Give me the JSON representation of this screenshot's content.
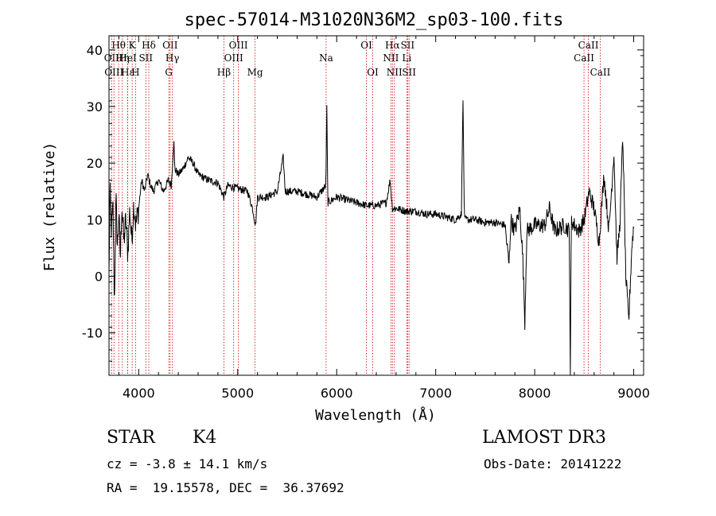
{
  "chart_data": {
    "type": "line",
    "title": "spec-57014-M31020N36M2_sp03-100.fits",
    "xlabel": "Wavelength (Å)",
    "ylabel": "Flux (relative)",
    "xlim": [
      3700,
      9100
    ],
    "ylim": [
      -17.5,
      42.5
    ],
    "xticks": [
      4000,
      5000,
      6000,
      7000,
      8000,
      9000
    ],
    "yticks": [
      -10,
      0,
      10,
      20,
      30,
      40
    ],
    "line_color": "#000000",
    "marker_color": "#cc0000",
    "spectrum": {
      "name": "flux",
      "anchors": [
        [
          3700,
          0
        ],
        [
          3710,
          15
        ],
        [
          3725,
          8
        ],
        [
          3740,
          12
        ],
        [
          3755,
          -5
        ],
        [
          3770,
          14
        ],
        [
          3785,
          5
        ],
        [
          3800,
          11
        ],
        [
          3815,
          3
        ],
        [
          3830,
          13
        ],
        [
          3850,
          6
        ],
        [
          3870,
          10
        ],
        [
          3890,
          4
        ],
        [
          3910,
          12
        ],
        [
          3930,
          6
        ],
        [
          3950,
          13
        ],
        [
          3970,
          9
        ],
        [
          4000,
          12
        ],
        [
          4030,
          17
        ],
        [
          4060,
          15
        ],
        [
          4090,
          18
        ],
        [
          4120,
          16
        ],
        [
          4150,
          15
        ],
        [
          4200,
          17
        ],
        [
          4250,
          15
        ],
        [
          4300,
          17
        ],
        [
          4330,
          16
        ],
        [
          4355,
          24
        ],
        [
          4365,
          19
        ],
        [
          4400,
          18
        ],
        [
          4450,
          19
        ],
        [
          4500,
          21
        ],
        [
          4550,
          20
        ],
        [
          4600,
          18
        ],
        [
          4700,
          17
        ],
        [
          4800,
          16.5
        ],
        [
          4860,
          14
        ],
        [
          4900,
          16
        ],
        [
          5000,
          15.5
        ],
        [
          5100,
          15
        ],
        [
          5150,
          12
        ],
        [
          5180,
          9
        ],
        [
          5200,
          14
        ],
        [
          5300,
          14
        ],
        [
          5400,
          15
        ],
        [
          5460,
          21
        ],
        [
          5480,
          15
        ],
        [
          5600,
          15
        ],
        [
          5700,
          14.5
        ],
        [
          5800,
          14
        ],
        [
          5890,
          16
        ],
        [
          5900,
          30
        ],
        [
          5910,
          13
        ],
        [
          6000,
          14
        ],
        [
          6100,
          13.5
        ],
        [
          6200,
          13
        ],
        [
          6300,
          12.5
        ],
        [
          6400,
          12.5
        ],
        [
          6500,
          13
        ],
        [
          6540,
          17
        ],
        [
          6563,
          12
        ],
        [
          6600,
          12
        ],
        [
          6700,
          11.5
        ],
        [
          6800,
          11.5
        ],
        [
          6900,
          11
        ],
        [
          7000,
          11
        ],
        [
          7100,
          10.5
        ],
        [
          7200,
          10
        ],
        [
          7260,
          11
        ],
        [
          7275,
          32
        ],
        [
          7290,
          10
        ],
        [
          7400,
          10
        ],
        [
          7500,
          9.5
        ],
        [
          7600,
          9.5
        ],
        [
          7700,
          9
        ],
        [
          7740,
          2
        ],
        [
          7760,
          10
        ],
        [
          7800,
          8
        ],
        [
          7850,
          12
        ],
        [
          7880,
          3
        ],
        [
          7900,
          -8
        ],
        [
          7920,
          8
        ],
        [
          8000,
          9
        ],
        [
          8100,
          9
        ],
        [
          8150,
          12
        ],
        [
          8200,
          8
        ],
        [
          8300,
          9
        ],
        [
          8350,
          8
        ],
        [
          8360,
          -17.5
        ],
        [
          8370,
          10
        ],
        [
          8400,
          9
        ],
        [
          8450,
          8
        ],
        [
          8500,
          10
        ],
        [
          8550,
          15
        ],
        [
          8600,
          12
        ],
        [
          8650,
          6
        ],
        [
          8700,
          18
        ],
        [
          8750,
          8
        ],
        [
          8800,
          22
        ],
        [
          8830,
          3
        ],
        [
          8860,
          9
        ],
        [
          8890,
          25
        ],
        [
          8920,
          0
        ],
        [
          8950,
          -8
        ],
        [
          8980,
          5
        ],
        [
          9000,
          9
        ]
      ]
    },
    "lines": [
      {
        "name": "Hθ",
        "wavelength": 3798,
        "row": 0
      },
      {
        "name": "OII",
        "wavelength": 3727,
        "row": 1
      },
      {
        "name": "OIII",
        "wavelength": 3750,
        "row": 2
      },
      {
        "name": "Hη",
        "wavelength": 3835,
        "row": 1
      },
      {
        "name": "Hε",
        "wavelength": 3889,
        "row": 2
      },
      {
        "name": "K",
        "wavelength": 3934,
        "row": 0
      },
      {
        "name": "HeI",
        "wavelength": 3889,
        "row": 1
      },
      {
        "name": "SII",
        "wavelength": 4072,
        "row": 1
      },
      {
        "name": "H",
        "wavelength": 3968,
        "row": 2
      },
      {
        "name": "Hδ",
        "wavelength": 4102,
        "row": 0
      },
      {
        "name": "OII",
        "wavelength": 4317,
        "row": 0
      },
      {
        "name": "Hγ",
        "wavelength": 4340,
        "row": 1
      },
      {
        "name": "G",
        "wavelength": 4304,
        "row": 2
      },
      {
        "name": "Hβ",
        "wavelength": 4861,
        "row": 2
      },
      {
        "name": "OIII",
        "wavelength": 4959,
        "row": 1
      },
      {
        "name": "OIII",
        "wavelength": 5007,
        "row": 0
      },
      {
        "name": "Mg",
        "wavelength": 5175,
        "row": 2
      },
      {
        "name": "Na",
        "wavelength": 5893,
        "row": 1
      },
      {
        "name": "OI",
        "wavelength": 6300,
        "row": 0
      },
      {
        "name": "OI",
        "wavelength": 6364,
        "row": 2
      },
      {
        "name": "Hα",
        "wavelength": 6563,
        "row": 0
      },
      {
        "name": "NII",
        "wavelength": 6548,
        "row": 1
      },
      {
        "name": "NII",
        "wavelength": 6583,
        "row": 2
      },
      {
        "name": "SII",
        "wavelength": 6716,
        "row": 0
      },
      {
        "name": "Li",
        "wavelength": 6708,
        "row": 1
      },
      {
        "name": "SII",
        "wavelength": 6731,
        "row": 2
      },
      {
        "name": "CaII",
        "wavelength": 8542,
        "row": 0
      },
      {
        "name": "CaII",
        "wavelength": 8498,
        "row": 1
      },
      {
        "name": "CaII",
        "wavelength": 8662,
        "row": 2
      }
    ]
  },
  "info": {
    "class": "STAR",
    "subclass": "K4",
    "survey": "LAMOST DR3",
    "cz": "cz = -3.8 ± 14.1 km/s",
    "obs_date": "Obs-Date: 20141222",
    "coords": "RA =  19.15578, DEC =  36.37692"
  }
}
